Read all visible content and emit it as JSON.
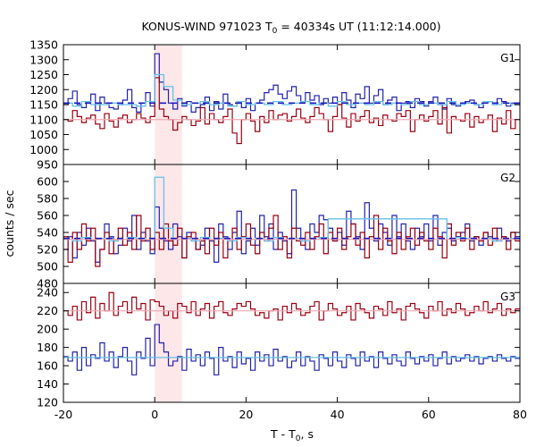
{
  "chart_data": {
    "type": "line",
    "title": {
      "main": "KONUS-WIND 971023 T",
      "sub": "0",
      "rest": " = 40334s UT (11:12:14.000)"
    },
    "xlabel": {
      "main": "T - T",
      "sub": "0",
      "rest": ", s"
    },
    "ylabel": "counts / sec",
    "xlim": [
      -20,
      80
    ],
    "xticks": [
      -20,
      0,
      20,
      40,
      60,
      80
    ],
    "highlight_interval": [
      0,
      6
    ],
    "colors": {
      "red": "#990011",
      "blue": "#2222aa",
      "light_blue": "#66c0e8",
      "pink": "#f0a8b0",
      "dashed_blue": "#1b1bbb",
      "highlight": "#fde7e9"
    },
    "panels": [
      {
        "label": "G1",
        "ylim": [
          950,
          1350
        ],
        "yticks": [
          950,
          1000,
          1050,
          1100,
          1150,
          1200,
          1250,
          1300,
          1350
        ],
        "series": [
          {
            "color": "blue",
            "step": 1,
            "values": [
              1150,
              1170,
              1195,
              1150,
              1140,
              1160,
              1185,
              1130,
              1175,
              1155,
              1140,
              1135,
              1150,
              1165,
              1200,
              1140,
              1125,
              1155,
              1190,
              1145,
              1320,
              1225,
              1200,
              1155,
              1135,
              1170,
              1145,
              1160,
              1125,
              1140,
              1150,
              1175,
              1130,
              1160,
              1135,
              1185,
              1150,
              1145,
              1160,
              1140,
              1170,
              1130,
              1155,
              1165,
              1190,
              1200,
              1215,
              1185,
              1170,
              1195,
              1210,
              1180,
              1160,
              1190,
              1165,
              1180,
              1150,
              1170,
              1155,
              1175,
              1150,
              1190,
              1165,
              1140,
              1185,
              1170,
              1210,
              1155,
              1180,
              1200,
              1150,
              1165,
              1175,
              1130,
              1155,
              1160,
              1140,
              1170,
              1160,
              1145,
              1160,
              1175,
              1150,
              1135,
              1170,
              1150,
              1145,
              1155,
              1160,
              1165,
              1150,
              1140,
              1155,
              1160,
              1150,
              1170,
              1160,
              1145,
              1155,
              1150
            ]
          },
          {
            "color": "red",
            "step": 1,
            "values": [
              1100,
              1095,
              1130,
              1110,
              1090,
              1105,
              1115,
              1085,
              1070,
              1120,
              1095,
              1075,
              1105,
              1115,
              1090,
              1100,
              1120,
              1105,
              1090,
              1110,
              1240,
              1135,
              1110,
              1100,
              1065,
              1090,
              1110,
              1100,
              1080,
              1095,
              1140,
              1085,
              1120,
              1100,
              1090,
              1110,
              1135,
              1055,
              1020,
              1100,
              1120,
              1095,
              1060,
              1110,
              1090,
              1130,
              1100,
              1115,
              1120,
              1095,
              1110,
              1135,
              1105,
              1090,
              1110,
              1140,
              1120,
              1100,
              1060,
              1110,
              1150,
              1105,
              1075,
              1120,
              1095,
              1110,
              1130,
              1090,
              1105,
              1080,
              1115,
              1100,
              1095,
              1120,
              1110,
              1130,
              1060,
              1100,
              1115,
              1095,
              1110,
              1130,
              1085,
              1140,
              1055,
              1110,
              1100,
              1095,
              1120,
              1075,
              1110,
              1090,
              1100,
              1115,
              1060,
              1105,
              1085,
              1130,
              1070,
              1100
            ]
          },
          {
            "color": "light_blue",
            "step": 2,
            "values": [
              1155,
              1145,
              1160,
              1150,
              1150,
              1155,
              1150,
              1150,
              1145,
              1160,
              1250,
              1210,
              1165,
              1150,
              1155,
              1160,
              1150,
              1155,
              1145,
              1160,
              1150,
              1155,
              1150,
              1160,
              1150,
              1155,
              1160,
              1150,
              1155,
              1145,
              1160,
              1150,
              1155,
              1150,
              1160,
              1150,
              1155,
              1150,
              1160,
              1150,
              1155,
              1150,
              1160,
              1150,
              1155,
              1150,
              1160,
              1150,
              1155,
              1150
            ]
          },
          {
            "color": "pink",
            "kind": "flat",
            "value": 1100
          },
          {
            "color": "dashed_blue",
            "kind": "flat",
            "value": 1155,
            "dashed": true
          }
        ]
      },
      {
        "label": "G2",
        "ylim": [
          480,
          620
        ],
        "yticks": [
          480,
          500,
          520,
          540,
          560,
          580,
          600
        ],
        "series": [
          {
            "color": "blue",
            "step": 1,
            "values": [
              520,
              535,
              510,
              540,
              525,
              545,
              530,
              505,
              520,
              550,
              535,
              515,
              525,
              545,
              530,
              560,
              520,
              540,
              530,
              515,
              570,
              545,
              530,
              520,
              550,
              535,
              510,
              540,
              530,
              520,
              525,
              545,
              530,
              505,
              550,
              535,
              520,
              540,
              565,
              515,
              530,
              545,
              525,
              560,
              535,
              550,
              520,
              540,
              530,
              515,
              590,
              545,
              530,
              520,
              550,
              540,
              560,
              555,
              545,
              530,
              540,
              525,
              565,
              550,
              535,
              520,
              575,
              545,
              530,
              550,
              540,
              525,
              560,
              535,
              550,
              530,
              520,
              545,
              535,
              550,
              530,
              560,
              525,
              540,
              545,
              530,
              535,
              540,
              550,
              530,
              535,
              525,
              540,
              535,
              530,
              545,
              535,
              530,
              540,
              535
            ]
          },
          {
            "color": "red",
            "step": 1,
            "values": [
              535,
              505,
              540,
              520,
              550,
              530,
              545,
              500,
              520,
              540,
              515,
              530,
              545,
              525,
              540,
              520,
              560,
              530,
              545,
              520,
              540,
              520,
              550,
              530,
              525,
              545,
              510,
              535,
              540,
              520,
              530,
              515,
              545,
              525,
              540,
              510,
              530,
              545,
              520,
              535,
              550,
              525,
              515,
              540,
              530,
              545,
              560,
              520,
              535,
              510,
              545,
              530,
              525,
              540,
              520,
              535,
              550,
              515,
              540,
              530,
              545,
              520,
              535,
              550,
              525,
              540,
              510,
              535,
              560,
              520,
              545,
              530,
              515,
              540,
              520,
              535,
              545,
              525,
              540,
              530,
              520,
              545,
              535,
              510,
              550,
              525,
              540,
              530,
              545,
              520,
              535,
              530,
              540,
              525,
              545,
              530,
              535,
              520,
              540,
              530
            ]
          },
          {
            "color": "light_blue",
            "step": 2,
            "values": [
              532,
              530,
              534,
              532,
              533,
              530,
              532,
              534,
              533,
              532,
              605,
              545,
              532,
              533,
              530,
              534,
              532,
              533,
              530,
              534,
              532,
              533,
              530,
              534,
              532,
              533,
              530,
              532,
              534,
              556,
              556,
              556,
              556,
              556,
              556,
              556,
              556,
              556,
              556,
              556,
              556,
              556,
              532,
              534,
              533,
              532,
              533,
              530,
              532,
              533
            ]
          },
          {
            "color": "pink",
            "kind": "flat",
            "value": 532
          },
          {
            "color": "dashed_blue",
            "kind": "flat",
            "value": 533,
            "dashed": true
          }
        ]
      },
      {
        "label": "G3",
        "ylim": [
          120,
          250
        ],
        "yticks": [
          120,
          140,
          160,
          180,
          200,
          220,
          240
        ],
        "series": [
          {
            "color": "red",
            "step": 1,
            "values": [
              220,
              215,
              225,
              210,
              230,
              218,
              235,
              212,
              228,
              220,
              240,
              215,
              225,
              230,
              218,
              235,
              222,
              228,
              210,
              232,
              230,
              225,
              215,
              220,
              212,
              228,
              225,
              218,
              230,
              215,
              222,
              228,
              212,
              225,
              230,
              218,
              215,
              222,
              228,
              225,
              230,
              222,
              215,
              218,
              212,
              220,
              222,
              210,
              225,
              218,
              228,
              222,
              215,
              218,
              225,
              230,
              210,
              220,
              228,
              222,
              215,
              218,
              225,
              210,
              228,
              222,
              218,
              212,
              225,
              222,
              215,
              230,
              218,
              222,
              210,
              225,
              228,
              222,
              218,
              212,
              225,
              220,
              230,
              215,
              222,
              218,
              228,
              222,
              215,
              218,
              225,
              220,
              230,
              218,
              222,
              228,
              215,
              222,
              218,
              222
            ]
          },
          {
            "color": "blue",
            "step": 1,
            "values": [
              170,
              165,
              175,
              155,
              180,
              160,
              172,
              168,
              185,
              165,
              175,
              158,
              170,
              180,
              165,
              150,
              175,
              168,
              190,
              160,
              205,
              185,
              175,
              160,
              165,
              170,
              155,
              178,
              165,
              172,
              160,
              175,
              168,
              150,
              180,
              165,
              170,
              158,
              175,
              162,
              168,
              155,
              175,
              165,
              172,
              160,
              178,
              165,
              170,
              158,
              165,
              175,
              160,
              170,
              165,
              155,
              172,
              168,
              160,
              175,
              165,
              158,
              172,
              168,
              160,
              175,
              165,
              170,
              158,
              175,
              168,
              162,
              172,
              165,
              160,
              175,
              168,
              162,
              170,
              165,
              172,
              160,
              168,
              175,
              162,
              170,
              165,
              168,
              172,
              165,
              170,
              162,
              168,
              170,
              165,
              172,
              168,
              165,
              170,
              168
            ]
          },
          {
            "color": "light_blue",
            "kind": "flat",
            "value": 169
          },
          {
            "color": "pink",
            "kind": "flat",
            "value": 220
          }
        ]
      }
    ]
  }
}
